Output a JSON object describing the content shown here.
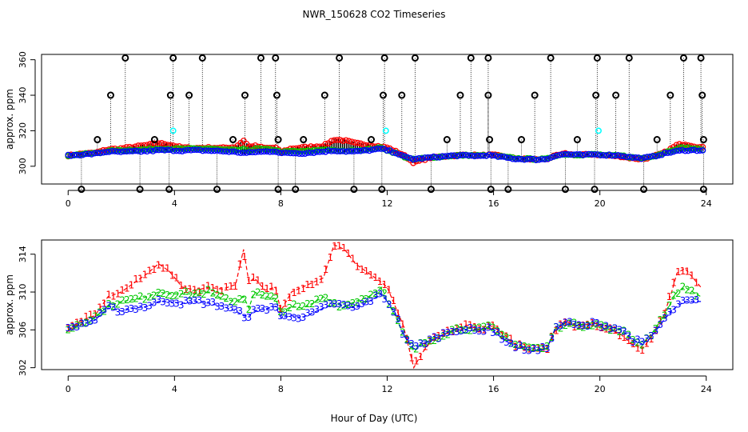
{
  "title": "NWR_150628  CO2 Timeseries",
  "xlabel": "Hour of Day (UTC)",
  "colors": {
    "raw": "#000000",
    "series1": "#ff0000",
    "series2": "#00c800",
    "series3": "#0000ff",
    "flag": "#00ffff"
  },
  "chart_data": [
    {
      "type": "scatter",
      "panel": "top",
      "ylabel": "approx. ppm",
      "xlim": [
        -1,
        25
      ],
      "ylim": [
        290,
        363
      ],
      "xticks": [
        0,
        4,
        8,
        12,
        16,
        20,
        24
      ],
      "yticks": [
        300,
        320,
        340,
        360
      ],
      "flagged_points": {
        "high_361": [
          2.15,
          3.95,
          5.05,
          7.25,
          7.8,
          10.2,
          11.9,
          13.05,
          15.15,
          15.8,
          18.15,
          19.9,
          21.1,
          23.15,
          23.8
        ],
        "high_340": [
          1.6,
          3.85,
          4.55,
          6.65,
          7.85,
          9.65,
          11.85,
          12.55,
          14.75,
          15.8,
          17.55,
          19.85,
          20.6,
          22.65,
          23.85
        ],
        "mid_315": [
          1.1,
          3.25,
          6.2,
          7.9,
          8.85,
          11.4,
          14.25,
          15.85,
          17.05,
          19.15,
          22.15,
          23.9
        ],
        "low_287": [
          0.5,
          2.7,
          3.8,
          5.6,
          7.9,
          8.55,
          10.75,
          11.8,
          13.65,
          15.9,
          16.55,
          18.7,
          19.8,
          21.65,
          23.9
        ],
        "cyan_320": [
          3.95,
          11.95,
          19.95
        ]
      },
      "series": [
        {
          "name": "1",
          "color": "#ff0000",
          "note": "bulk ~305-311 ppm"
        },
        {
          "name": "2",
          "color": "#00c800",
          "note": "bulk ~305-310 ppm"
        },
        {
          "name": "3",
          "color": "#0000ff",
          "note": "bulk ~304-310 ppm"
        }
      ]
    },
    {
      "type": "line",
      "panel": "bottom",
      "ylabel": "approx. ppm",
      "xlim": [
        -1,
        25
      ],
      "ylim": [
        301.8,
        315.5
      ],
      "xticks": [
        0,
        4,
        8,
        12,
        16,
        20,
        24
      ],
      "yticks": [
        302,
        306,
        310,
        314
      ],
      "anchors": {
        "x": [
          0,
          0.5,
          1.0,
          1.5,
          2.0,
          2.5,
          3.0,
          3.4,
          3.8,
          4.3,
          4.8,
          5.3,
          5.8,
          6.3,
          6.6,
          6.8,
          7.0,
          7.4,
          7.8,
          8.0,
          8.4,
          8.8,
          9.2,
          9.6,
          10.0,
          10.4,
          10.8,
          11.3,
          11.8,
          12.0,
          12.3,
          12.6,
          13.0,
          13.3,
          13.7,
          14.1,
          14.5,
          15.0,
          15.5,
          15.8,
          16.0,
          16.4,
          16.8,
          17.2,
          17.6,
          18.0,
          18.3,
          18.7,
          19.0,
          19.4,
          19.8,
          20.0,
          20.4,
          20.8,
          21.2,
          21.6,
          22.0,
          22.4,
          22.7,
          22.9,
          23.2,
          23.5,
          23.8
        ],
        "s1": [
          306.0,
          307.0,
          307.5,
          309.5,
          310.0,
          311.0,
          312.0,
          313.0,
          312.2,
          310.5,
          310.2,
          310.5,
          310.3,
          310.8,
          314.5,
          311.0,
          311.5,
          310.2,
          310.5,
          308.0,
          310.0,
          310.5,
          311.0,
          311.5,
          315.0,
          314.5,
          313.0,
          312.0,
          311.0,
          310.5,
          308.5,
          306.5,
          302.0,
          303.5,
          305.0,
          305.5,
          306.0,
          306.5,
          306.0,
          306.5,
          306.3,
          305.5,
          304.5,
          304.0,
          303.8,
          304.0,
          305.8,
          307.0,
          306.5,
          306.5,
          306.8,
          306.3,
          306.0,
          305.5,
          304.5,
          304.0,
          305.5,
          307.5,
          310.0,
          312.0,
          312.5,
          311.5,
          310.5
        ],
        "s2": [
          306.0,
          306.8,
          307.3,
          308.5,
          309.0,
          309.2,
          309.5,
          310.0,
          309.8,
          309.8,
          309.8,
          310.0,
          309.3,
          309.0,
          309.5,
          308.3,
          310.0,
          309.5,
          309.3,
          307.8,
          308.5,
          308.3,
          308.8,
          309.5,
          308.8,
          308.5,
          309.0,
          309.5,
          310.5,
          309.0,
          307.5,
          305.5,
          303.8,
          304.5,
          305.0,
          305.5,
          306.0,
          306.2,
          306.0,
          306.3,
          306.0,
          305.3,
          304.5,
          304.2,
          304.0,
          304.0,
          306.0,
          306.7,
          306.5,
          306.5,
          306.7,
          306.5,
          306.0,
          306.0,
          305.0,
          304.5,
          305.8,
          307.5,
          309.0,
          310.0,
          310.5,
          310.0,
          309.5
        ],
        "s3": [
          306.0,
          306.6,
          307.0,
          308.3,
          308.0,
          308.3,
          308.5,
          309.0,
          309.0,
          308.8,
          309.0,
          308.8,
          308.5,
          308.0,
          307.5,
          307.5,
          308.0,
          308.2,
          308.5,
          307.3,
          307.5,
          307.3,
          307.8,
          308.3,
          308.8,
          308.5,
          308.3,
          309.0,
          309.8,
          309.0,
          307.8,
          305.5,
          304.0,
          304.5,
          305.0,
          305.5,
          306.0,
          306.0,
          305.8,
          306.3,
          305.8,
          305.0,
          304.2,
          304.0,
          303.8,
          304.0,
          306.0,
          306.8,
          306.5,
          306.3,
          306.7,
          306.5,
          306.3,
          306.0,
          305.0,
          304.5,
          305.5,
          307.0,
          308.0,
          308.5,
          309.0,
          309.0,
          309.0
        ]
      },
      "series": [
        {
          "name": "1",
          "color": "#ff0000"
        },
        {
          "name": "2",
          "color": "#00c800"
        },
        {
          "name": "3",
          "color": "#0000ff"
        }
      ]
    }
  ]
}
